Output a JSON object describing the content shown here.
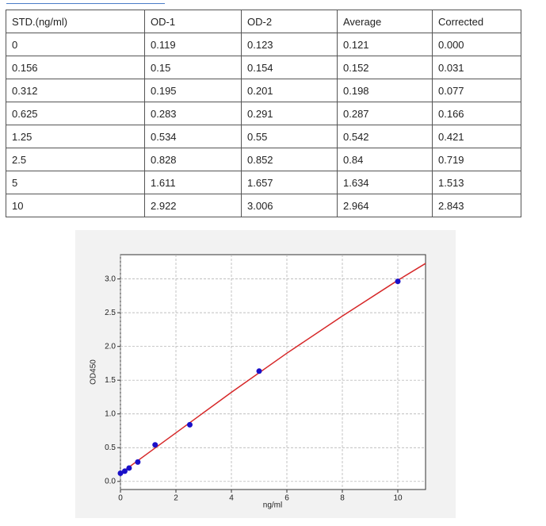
{
  "table": {
    "columns": [
      "STD.(ng/ml)",
      "OD-1",
      "OD-2",
      "Average",
      "Corrected"
    ],
    "rows": [
      [
        "0",
        "0.119",
        "0.123",
        "0.121",
        "0.000"
      ],
      [
        "0.156",
        "0.15",
        "0.154",
        "0.152",
        "0.031"
      ],
      [
        "0.312",
        "0.195",
        "0.201",
        "0.198",
        "0.077"
      ],
      [
        "0.625",
        "0.283",
        "0.291",
        "0.287",
        "0.166"
      ],
      [
        "1.25",
        "0.534",
        "0.55",
        "0.542",
        "0.421"
      ],
      [
        "2.5",
        "0.828",
        "0.852",
        "0.84",
        "0.719"
      ],
      [
        "5",
        "1.611",
        "1.657",
        "1.634",
        "1.513"
      ],
      [
        "10",
        "2.922",
        "3.006",
        "2.964",
        "2.843"
      ]
    ]
  },
  "chart_data": {
    "type": "scatter",
    "xlabel": "ng/ml",
    "ylabel": "OD450",
    "xlim": [
      0,
      11
    ],
    "ylim": [
      -0.12,
      3.36
    ],
    "grid": true,
    "xticks": [
      0,
      2,
      4,
      6,
      8,
      10
    ],
    "yticks": [
      {
        "value": 0,
        "label": "0.0"
      },
      {
        "value": 0.5,
        "label": "0.5"
      },
      {
        "value": 1,
        "label": "1.0"
      },
      {
        "value": 1.5,
        "label": "1.5"
      },
      {
        "value": 2,
        "label": "2.0"
      },
      {
        "value": 2.5,
        "label": "2.5"
      },
      {
        "value": 3,
        "label": "3.0"
      }
    ],
    "series": [
      {
        "type": "line",
        "color": "#d62728",
        "x": [
          0,
          1,
          2,
          4,
          6,
          8,
          10,
          11
        ],
        "values": [
          0.12,
          0.42,
          0.72,
          1.32,
          1.9,
          2.45,
          2.98,
          3.23
        ]
      },
      {
        "type": "scatter",
        "color": "#1a10c8",
        "x": [
          0,
          0.156,
          0.312,
          0.625,
          1.25,
          2.5,
          5,
          10
        ],
        "values": [
          0.121,
          0.152,
          0.198,
          0.287,
          0.542,
          0.84,
          1.634,
          2.964
        ]
      }
    ]
  }
}
